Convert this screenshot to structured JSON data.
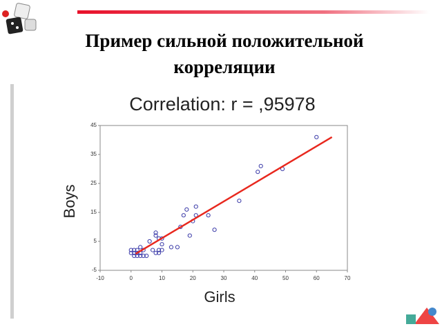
{
  "slide_title": [
    "Пример сильной положительной",
    "корреляции"
  ],
  "chart_data": {
    "type": "scatter",
    "title": "Correlation: r = ,95978",
    "x_label": "Girls",
    "y_label": "Boys",
    "x": [
      0,
      0,
      1,
      1,
      1,
      2,
      2,
      2,
      3,
      3,
      3,
      4,
      4,
      5,
      6,
      7,
      8,
      8,
      8,
      9,
      9,
      9,
      10,
      10,
      10,
      13,
      15,
      16,
      17,
      18,
      19,
      20,
      21,
      21,
      25,
      27,
      35,
      41,
      42,
      49,
      60
    ],
    "values": [
      1,
      2,
      0,
      1,
      2,
      0,
      1,
      2,
      0,
      1,
      3,
      0,
      2,
      0,
      5,
      2,
      1,
      7,
      8,
      1,
      2,
      6,
      2,
      4,
      6,
      3,
      3,
      10,
      14,
      16,
      7,
      12,
      14,
      17,
      14,
      9,
      19,
      29,
      31,
      30,
      41
    ],
    "color": "#3a3aa8",
    "fit_line": {
      "x": [
        1.5,
        65
      ],
      "y": [
        0.7,
        41
      ],
      "color": "#e8281e"
    },
    "xlim": [
      -10,
      70
    ],
    "ylim": [
      -5,
      45
    ],
    "xticks": [
      -10,
      0,
      10,
      20,
      30,
      40,
      50,
      60,
      70
    ],
    "yticks": [
      -5,
      5,
      15,
      25,
      35,
      45
    ]
  }
}
